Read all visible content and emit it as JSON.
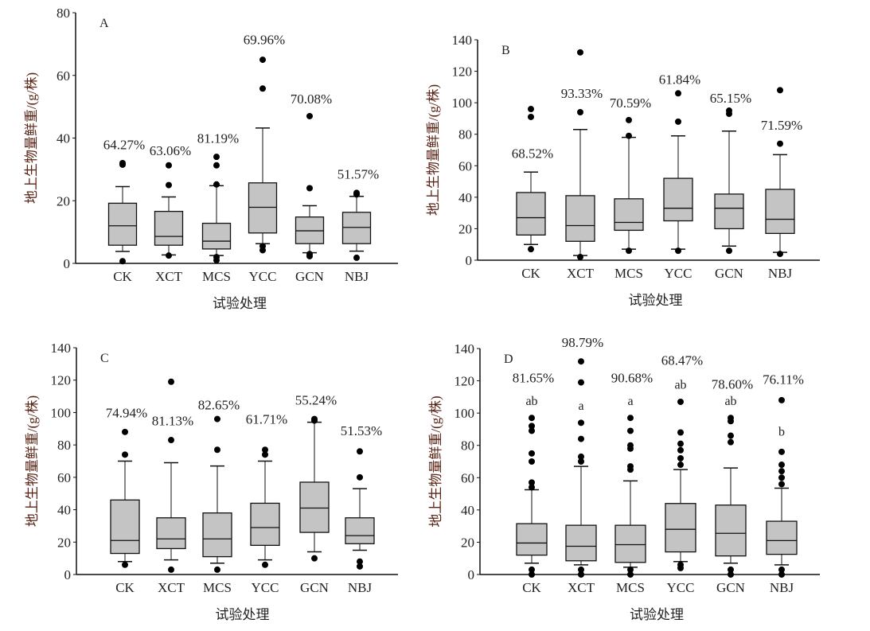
{
  "chart_data": [
    {
      "type": "box",
      "panel_label": "A",
      "xlabel": "试验处理",
      "ylabel": "地上生物量鲜重/(g/株)",
      "ylim": [
        0,
        80
      ],
      "yticks": [
        0,
        20,
        40,
        60,
        80
      ],
      "categories": [
        "CK",
        "XCT",
        "MCS",
        "YCC",
        "GCN",
        "NBJ"
      ],
      "percent_labels": [
        "64.27%",
        "63.06%",
        "81.19%",
        "69.96%",
        "70.08%",
        "51.57%"
      ],
      "boxes": [
        {
          "low": 3.8,
          "q1": 5.8,
          "median": 12,
          "q3": 19.2,
          "high": 24.5,
          "outliers": [
            31.5,
            32,
            0.7
          ]
        },
        {
          "low": 2.7,
          "q1": 5.8,
          "median": 8.6,
          "q3": 16.6,
          "high": 21.2,
          "outliers": [
            31.3,
            25,
            2.5
          ]
        },
        {
          "low": 2.5,
          "q1": 4.6,
          "median": 7.1,
          "q3": 12.8,
          "high": 24.8,
          "outliers": [
            34,
            31.3,
            25.2,
            2,
            1
          ]
        },
        {
          "low": 6.3,
          "q1": 9.7,
          "median": 17.9,
          "q3": 25.7,
          "high": 43.2,
          "outliers": [
            65,
            55.8,
            5.5,
            4.2
          ]
        },
        {
          "low": 3.4,
          "q1": 6.3,
          "median": 10.4,
          "q3": 14.8,
          "high": 18.4,
          "outliers": [
            47,
            24,
            3,
            2.3
          ]
        },
        {
          "low": 3.9,
          "q1": 6.3,
          "median": 11.5,
          "q3": 16.3,
          "high": 21.4,
          "outliers": [
            22.5,
            22,
            1.8
          ]
        }
      ]
    },
    {
      "type": "box",
      "panel_label": "B",
      "xlabel": "试验处理",
      "ylabel": "地上生物量鲜重/(g/株)",
      "ylim": [
        0,
        140
      ],
      "yticks": [
        0,
        20,
        40,
        60,
        80,
        100,
        120,
        140
      ],
      "categories": [
        "CK",
        "XCT",
        "MCS",
        "YCC",
        "GCN",
        "NBJ"
      ],
      "percent_labels": [
        "68.52%",
        "93.33%",
        "70.59%",
        "61.84%",
        "65.15%",
        "71.59%"
      ],
      "boxes": [
        {
          "low": 10,
          "q1": 16,
          "median": 27,
          "q3": 43,
          "high": 56,
          "outliers": [
            96,
            91,
            7
          ]
        },
        {
          "low": 3,
          "q1": 12,
          "median": 22,
          "q3": 41,
          "high": 83,
          "outliers": [
            132,
            94,
            2
          ]
        },
        {
          "low": 7,
          "q1": 19,
          "median": 24,
          "q3": 39,
          "high": 78,
          "outliers": [
            89,
            79,
            6
          ]
        },
        {
          "low": 7,
          "q1": 25,
          "median": 33,
          "q3": 52,
          "high": 79,
          "outliers": [
            106,
            88,
            6
          ]
        },
        {
          "low": 9,
          "q1": 20,
          "median": 33,
          "q3": 42,
          "high": 82,
          "outliers": [
            95,
            93,
            6
          ]
        },
        {
          "low": 5,
          "q1": 17,
          "median": 26,
          "q3": 45,
          "high": 67,
          "outliers": [
            108,
            74,
            4
          ]
        }
      ]
    },
    {
      "type": "box",
      "panel_label": "C",
      "xlabel": "试验处理",
      "ylabel": "地上生物量鲜重/(g/株)",
      "ylim": [
        0,
        140
      ],
      "yticks": [
        0,
        20,
        40,
        60,
        80,
        100,
        120,
        140
      ],
      "categories": [
        "CK",
        "XCT",
        "MCS",
        "YCC",
        "GCN",
        "NBJ"
      ],
      "percent_labels": [
        "74.94%",
        "81.13%",
        "82.65%",
        "61.71%",
        "55.24%",
        "51.53%"
      ],
      "boxes": [
        {
          "low": 8,
          "q1": 13,
          "median": 21,
          "q3": 46,
          "high": 70,
          "outliers": [
            88,
            74,
            6
          ]
        },
        {
          "low": 9,
          "q1": 16,
          "median": 22,
          "q3": 35,
          "high": 69,
          "outliers": [
            119,
            83,
            3
          ]
        },
        {
          "low": 7,
          "q1": 11,
          "median": 22,
          "q3": 38,
          "high": 67,
          "outliers": [
            96,
            77,
            3
          ]
        },
        {
          "low": 9,
          "q1": 18,
          "median": 29,
          "q3": 44,
          "high": 70,
          "outliers": [
            77,
            74,
            6
          ]
        },
        {
          "low": 14,
          "q1": 26,
          "median": 41,
          "q3": 57,
          "high": 94,
          "outliers": [
            96,
            95,
            10
          ]
        },
        {
          "low": 15,
          "q1": 19,
          "median": 24,
          "q3": 35,
          "high": 53,
          "outliers": [
            76,
            60,
            8,
            5
          ]
        }
      ]
    },
    {
      "type": "box",
      "panel_label": "D",
      "xlabel": "试验处理",
      "ylabel": "地上生物量鲜重/(g/株)",
      "ylim": [
        0,
        140
      ],
      "yticks": [
        0,
        20,
        40,
        60,
        80,
        100,
        120,
        140
      ],
      "categories": [
        "CK",
        "XCT",
        "MCS",
        "YCC",
        "GCN",
        "NBJ"
      ],
      "percent_labels": [
        "81.65%",
        "98.79%",
        "90.68%",
        "68.47%",
        "78.60%",
        "76.11%"
      ],
      "significance_letters": [
        "ab",
        "a",
        "a",
        "ab",
        "ab",
        "b"
      ],
      "boxes": [
        {
          "low": 7,
          "q1": 12,
          "median": 19.5,
          "q3": 31.5,
          "high": 52.5,
          "outliers": [
            97,
            92,
            89,
            75,
            70,
            57,
            54,
            3,
            0
          ]
        },
        {
          "low": 6,
          "q1": 8.5,
          "median": 17.5,
          "q3": 30.5,
          "high": 67,
          "outliers": [
            132,
            119,
            94,
            84,
            73,
            70,
            3,
            0
          ]
        },
        {
          "low": 4.5,
          "q1": 7.5,
          "median": 18.5,
          "q3": 30.5,
          "high": 58,
          "outliers": [
            97,
            89,
            80,
            78,
            67,
            65,
            3,
            0
          ]
        },
        {
          "low": 8,
          "q1": 14,
          "median": 28,
          "q3": 44,
          "high": 65,
          "outliers": [
            107,
            88,
            81,
            77,
            72,
            68,
            6,
            4
          ]
        },
        {
          "low": 7,
          "q1": 11.5,
          "median": 25.5,
          "q3": 43,
          "high": 66,
          "outliers": [
            97,
            95,
            86,
            82,
            3,
            0
          ]
        },
        {
          "low": 6,
          "q1": 12.5,
          "median": 21,
          "q3": 33,
          "high": 53.5,
          "outliers": [
            108,
            76,
            68,
            64,
            60,
            56,
            3,
            0
          ]
        }
      ]
    }
  ],
  "colors": {
    "box_fill": "#c4c4c4",
    "outline": "#111111",
    "ylabel": "#5a2416"
  }
}
